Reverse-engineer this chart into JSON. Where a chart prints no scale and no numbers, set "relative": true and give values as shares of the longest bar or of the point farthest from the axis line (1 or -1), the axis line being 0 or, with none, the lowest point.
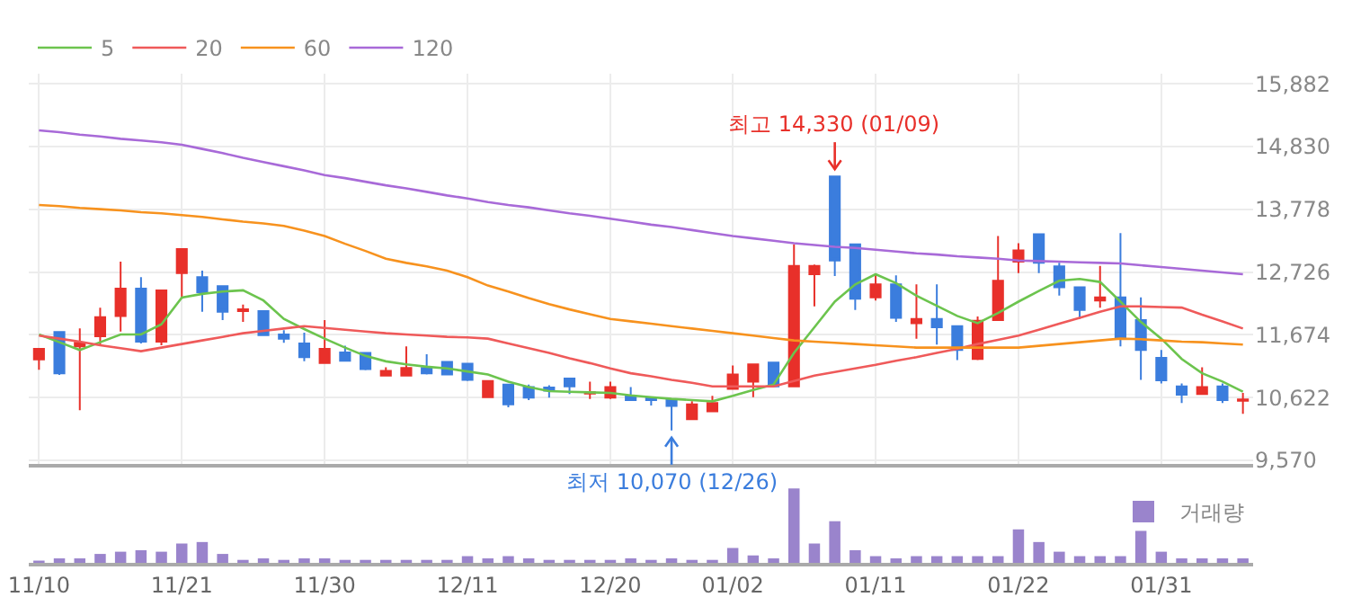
{
  "chart_data": [
    {
      "type": "candlestick",
      "categories": [
        null,
        null,
        null,
        null,
        null,
        null,
        null,
        null,
        null,
        null,
        null,
        null,
        null,
        null,
        null,
        null,
        null,
        null,
        null,
        null,
        null,
        null,
        null,
        null,
        null,
        null,
        null,
        null,
        null,
        null,
        null,
        null,
        null,
        null,
        null,
        null,
        null,
        null,
        null,
        null,
        null,
        null,
        null,
        null,
        null,
        null,
        null,
        null,
        null,
        null,
        null,
        null,
        null,
        null,
        null,
        null,
        null,
        null,
        null,
        null
      ],
      "ohlc": [
        [
          11260,
          11440,
          11090,
          11440
        ],
        [
          11720,
          11720,
          11000,
          11030
        ],
        [
          11480,
          11780,
          10410,
          11540
        ],
        [
          11650,
          12130,
          11510,
          11970
        ],
        [
          11990,
          12900,
          11730,
          12450
        ],
        [
          12450,
          12640,
          11530,
          11560
        ],
        [
          11560,
          12420,
          11500,
          12420
        ],
        [
          12710,
          13110,
          12280,
          13110
        ],
        [
          12640,
          12750,
          12060,
          12390
        ],
        [
          12490,
          12490,
          11920,
          12060
        ],
        [
          12070,
          12180,
          11890,
          12100
        ],
        [
          12070,
          12070,
          11670,
          11670
        ],
        [
          11680,
          11750,
          11540,
          11610
        ],
        [
          11530,
          11710,
          11230,
          11300
        ],
        [
          11200,
          11920,
          11200,
          11440
        ],
        [
          11380,
          11490,
          11240,
          11240
        ],
        [
          11370,
          11370,
          11080,
          11100
        ],
        [
          10990,
          11130,
          10990,
          11070
        ],
        [
          10990,
          11480,
          10990,
          11120
        ],
        [
          11120,
          11350,
          11010,
          11030
        ],
        [
          11220,
          11220,
          11000,
          11010
        ],
        [
          11190,
          11190,
          10900,
          10920
        ],
        [
          10630,
          10900,
          10630,
          10900
        ],
        [
          10840,
          10840,
          10460,
          10510
        ],
        [
          10800,
          10840,
          10580,
          10620
        ],
        [
          10790,
          10830,
          10620,
          10740
        ],
        [
          10940,
          10940,
          10680,
          10810
        ],
        [
          10690,
          10890,
          10600,
          10710
        ],
        [
          10620,
          10890,
          10600,
          10800
        ],
        [
          10640,
          10800,
          10580,
          10580
        ],
        [
          10620,
          10620,
          10490,
          10580
        ],
        [
          10590,
          10590,
          10070,
          10480
        ],
        [
          10260,
          10560,
          10260,
          10510
        ],
        [
          10390,
          10650,
          10390,
          10530
        ],
        [
          10770,
          11160,
          10770,
          11010
        ],
        [
          10890,
          11180,
          10630,
          11180
        ],
        [
          11210,
          11210,
          10810,
          10810
        ],
        [
          10810,
          13190,
          10800,
          12830
        ],
        [
          12690,
          12850,
          12150,
          12830
        ],
        [
          14330,
          14330,
          12660,
          12920
        ],
        [
          13190,
          13190,
          12090,
          12280
        ],
        [
          12300,
          12690,
          12250,
          12520
        ],
        [
          12520,
          12670,
          11890,
          11960
        ],
        [
          11870,
          12520,
          11610,
          11940
        ],
        [
          11940,
          12520,
          11510,
          11800
        ],
        [
          11820,
          11820,
          11250,
          11420
        ],
        [
          11270,
          11980,
          11250,
          11910
        ],
        [
          11920,
          13330,
          11920,
          12580
        ],
        [
          12900,
          13210,
          12710,
          13090
        ],
        [
          13360,
          13360,
          12710,
          12880
        ],
        [
          12820,
          12880,
          12330,
          12470
        ],
        [
          12470,
          12470,
          11940,
          12090
        ],
        [
          12250,
          12830,
          12130,
          12300
        ],
        [
          12300,
          13380,
          11480,
          11610
        ],
        [
          11920,
          12300,
          10920,
          11420
        ],
        [
          11290,
          11420,
          10860,
          10910
        ],
        [
          10810,
          10860,
          10530,
          10670
        ],
        [
          10680,
          11130,
          10680,
          10800
        ],
        [
          10810,
          10860,
          10530,
          10580
        ],
        [
          10570,
          10700,
          10350,
          10590
        ]
      ],
      "colors": [
        "#e8302a",
        "#3b7ddd",
        "#e8302a",
        "#e8302a",
        "#e8302a",
        "#3b7ddd",
        "#e8302a",
        "#e8302a",
        "#3b7ddd",
        "#3b7ddd",
        "#e8302a",
        "#3b7ddd",
        "#3b7ddd",
        "#3b7ddd",
        "#e8302a",
        "#3b7ddd",
        "#3b7ddd",
        "#e8302a",
        "#e8302a",
        "#3b7ddd",
        "#3b7ddd",
        "#3b7ddd",
        "#e8302a",
        "#3b7ddd",
        "#3b7ddd",
        "#3b7ddd",
        "#3b7ddd",
        "#e8302a",
        "#e8302a",
        "#3b7ddd",
        "#3b7ddd",
        "#3b7ddd",
        "#e8302a",
        "#e8302a",
        "#e8302a",
        "#e8302a",
        "#3b7ddd",
        "#e8302a",
        "#e8302a",
        "#3b7ddd",
        "#3b7ddd",
        "#e8302a",
        "#3b7ddd",
        "#e8302a",
        "#3b7ddd",
        "#3b7ddd",
        "#e8302a",
        "#e8302a",
        "#e8302a",
        "#3b7ddd",
        "#3b7ddd",
        "#3b7ddd",
        "#e8302a",
        "#3b7ddd",
        "#3b7ddd",
        "#3b7ddd",
        "#3b7ddd",
        "#e8302a",
        "#3b7ddd",
        "#e8302a"
      ],
      "series": [
        {
          "type": "line",
          "name": "5",
          "color": "#6cc44e",
          "values": [
            11680,
            11550,
            11420,
            11550,
            11680,
            11680,
            11850,
            12300,
            12360,
            12400,
            12420,
            12250,
            11940,
            11770,
            11610,
            11460,
            11320,
            11230,
            11180,
            11140,
            11110,
            11060,
            11010,
            10890,
            10800,
            10730,
            10720,
            10710,
            10700,
            10660,
            10630,
            10600,
            10580,
            10560,
            10650,
            10750,
            10840,
            11370,
            11800,
            12230,
            12520,
            12690,
            12540,
            12330,
            12160,
            11990,
            11870,
            12040,
            12230,
            12410,
            12580,
            12610,
            12560,
            12230,
            11890,
            11610,
            11270,
            11030,
            10890,
            10720
          ]
        },
        {
          "type": "line",
          "name": "20",
          "color": "#ef5a5a",
          "values": [
            11660,
            11610,
            11560,
            11500,
            11450,
            11400,
            11460,
            11520,
            11580,
            11640,
            11700,
            11740,
            11780,
            11820,
            11790,
            11760,
            11730,
            11700,
            11680,
            11660,
            11640,
            11630,
            11610,
            11530,
            11450,
            11370,
            11280,
            11200,
            11110,
            11030,
            10980,
            10920,
            10870,
            10810,
            10810,
            10810,
            10810,
            10900,
            10990,
            11050,
            11110,
            11170,
            11240,
            11300,
            11370,
            11440,
            11520,
            11590,
            11660,
            11760,
            11860,
            11960,
            12060,
            12150,
            12150,
            12140,
            12130,
            12010,
            11900,
            11780
          ]
        },
        {
          "type": "line",
          "name": "60",
          "color": "#f7921e",
          "values": [
            13850,
            13830,
            13800,
            13780,
            13760,
            13730,
            13710,
            13680,
            13650,
            13610,
            13570,
            13540,
            13500,
            13420,
            13330,
            13200,
            13080,
            12950,
            12880,
            12820,
            12750,
            12640,
            12500,
            12400,
            12290,
            12190,
            12100,
            12020,
            11940,
            11900,
            11860,
            11820,
            11780,
            11740,
            11700,
            11660,
            11620,
            11580,
            11560,
            11540,
            11520,
            11500,
            11480,
            11460,
            11460,
            11460,
            11460,
            11460,
            11460,
            11490,
            11520,
            11550,
            11580,
            11610,
            11600,
            11580,
            11560,
            11550,
            11530,
            11510
          ]
        },
        {
          "type": "line",
          "name": "120",
          "color": "#a86ad8",
          "values": [
            15100,
            15070,
            15030,
            15000,
            14960,
            14930,
            14900,
            14860,
            14790,
            14720,
            14640,
            14570,
            14500,
            14430,
            14350,
            14300,
            14240,
            14180,
            14130,
            14070,
            14010,
            13960,
            13900,
            13850,
            13810,
            13760,
            13710,
            13670,
            13620,
            13570,
            13520,
            13480,
            13430,
            13380,
            13330,
            13290,
            13250,
            13210,
            13180,
            13150,
            13130,
            13100,
            13070,
            13040,
            13020,
            12990,
            12970,
            12950,
            12920,
            12910,
            12900,
            12890,
            12880,
            12870,
            12840,
            12810,
            12780,
            12750,
            12720,
            12690
          ]
        }
      ],
      "ylim": [
        9510,
        16050
      ],
      "yticks": [
        {
          "value": 9570,
          "label": "9,570"
        },
        {
          "value": 10622,
          "label": "10,622"
        },
        {
          "value": 11674,
          "label": "11,674"
        },
        {
          "value": 12726,
          "label": "12,726"
        },
        {
          "value": 13778,
          "label": "13,778"
        },
        {
          "value": 14830,
          "label": "14,830"
        },
        {
          "value": 15882,
          "label": "15,882"
        }
      ],
      "grid": true,
      "legend": "top left",
      "tick_labels": "y",
      "annotations": [
        {
          "text": "최고 14,330 (01/09)",
          "y": 14330
        },
        {
          "text": "최저 10,070 (12/26)",
          "y": 10070
        }
      ]
    },
    {
      "type": "bar",
      "categories": [
        "11/10",
        null,
        null,
        null,
        null,
        null,
        null,
        "11/21",
        null,
        null,
        null,
        null,
        null,
        null,
        "11/30",
        null,
        null,
        null,
        null,
        null,
        null,
        "12/11",
        null,
        null,
        null,
        null,
        null,
        null,
        "12/20",
        null,
        null,
        null,
        null,
        null,
        "01/02",
        null,
        null,
        null,
        null,
        null,
        null,
        "01/11",
        null,
        null,
        null,
        null,
        null,
        null,
        "01/22",
        null,
        null,
        null,
        null,
        null,
        null,
        "01/31",
        null,
        null,
        null,
        null
      ],
      "series": [
        {
          "name": "거래량",
          "color": "#9a84cc",
          "values": [
            0.03,
            0.06,
            0.06,
            0.12,
            0.15,
            0.17,
            0.15,
            0.26,
            0.28,
            0.12,
            0.04,
            0.06,
            0.04,
            0.06,
            0.06,
            0.04,
            0.04,
            0.04,
            0.04,
            0.04,
            0.04,
            0.09,
            0.06,
            0.09,
            0.06,
            0.04,
            0.04,
            0.04,
            0.04,
            0.06,
            0.04,
            0.06,
            0.04,
            0.04,
            0.2,
            0.1,
            0.06,
            1,
            0.26,
            0.56,
            0.17,
            0.09,
            0.06,
            0.09,
            0.09,
            0.09,
            0.09,
            0.09,
            0.45,
            0.28,
            0.15,
            0.09,
            0.09,
            0.09,
            0.43,
            0.15,
            0.06,
            0.06,
            0.06,
            0.06
          ]
        }
      ],
      "relative": true,
      "legend": "top right",
      "tick_labels": "x"
    }
  ]
}
